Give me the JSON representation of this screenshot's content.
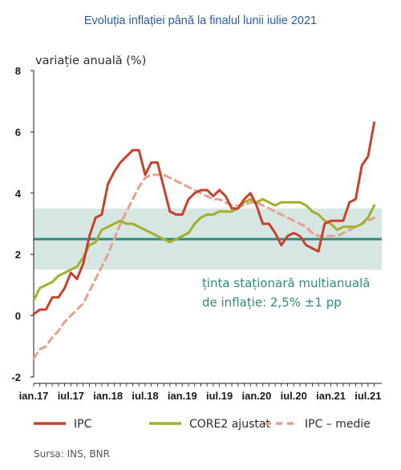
{
  "chart_data": {
    "type": "line",
    "title": "Evoluția inflației până la finalul lunii iulie 2021",
    "ylabel": "variație anuală (%)",
    "ylim": [
      -2,
      8
    ],
    "yticks": [
      -2,
      0,
      2,
      4,
      6,
      8
    ],
    "xtick_labels": [
      "ian.17",
      "iul.17",
      "ian.18",
      "iul.18",
      "ian.19",
      "iul.19",
      "ian.20",
      "iul.20",
      "ian.21",
      "iul.21"
    ],
    "target": {
      "center": 2.5,
      "lower": 1.5,
      "upper": 3.5
    },
    "annotation": [
      "ținta staționară multianuală",
      "de inflație: 2,5% ±1 pp"
    ],
    "series": [
      {
        "name": "IPC",
        "color": "#c8402e",
        "dash": "solid",
        "values": [
          0.05,
          0.2,
          0.2,
          0.6,
          0.6,
          0.9,
          1.4,
          1.2,
          1.7,
          2.6,
          3.2,
          3.3,
          4.3,
          4.7,
          5.0,
          5.2,
          5.4,
          5.4,
          4.6,
          5.0,
          5.0,
          4.2,
          3.4,
          3.3,
          3.3,
          3.8,
          4.0,
          4.1,
          4.1,
          3.9,
          4.1,
          3.9,
          3.5,
          3.5,
          3.8,
          4.0,
          3.6,
          3.0,
          3.0,
          2.7,
          2.3,
          2.6,
          2.7,
          2.6,
          2.3,
          2.2,
          2.1,
          3.0,
          3.1,
          3.1,
          3.1,
          3.7,
          3.8,
          4.9,
          5.2,
          6.3
        ]
      },
      {
        "name": "CORE2 ajustat",
        "color": "#a3b02a",
        "dash": "solid",
        "values": [
          0.5,
          0.9,
          1.0,
          1.1,
          1.3,
          1.4,
          1.5,
          1.6,
          1.9,
          2.3,
          2.4,
          2.8,
          2.9,
          3.0,
          3.1,
          3.0,
          3.0,
          2.9,
          2.8,
          2.7,
          2.6,
          2.5,
          2.4,
          2.5,
          2.6,
          2.7,
          3.0,
          3.2,
          3.3,
          3.3,
          3.4,
          3.4,
          3.4,
          3.5,
          3.7,
          3.8,
          3.7,
          3.8,
          3.7,
          3.6,
          3.7,
          3.7,
          3.7,
          3.7,
          3.6,
          3.4,
          3.3,
          3.1,
          3.0,
          2.8,
          2.9,
          2.9,
          2.9,
          3.0,
          3.2,
          3.6
        ]
      },
      {
        "name": "IPC – medie",
        "color": "#e8a08a",
        "dash": "dashed",
        "values": [
          -1.4,
          -1.1,
          -1.0,
          -0.7,
          -0.5,
          -0.2,
          0.0,
          0.2,
          0.4,
          0.8,
          1.2,
          1.6,
          2.0,
          2.5,
          3.0,
          3.4,
          3.8,
          4.2,
          4.5,
          4.6,
          4.6,
          4.6,
          4.5,
          4.4,
          4.3,
          4.2,
          4.1,
          4.0,
          3.9,
          3.8,
          3.8,
          3.7,
          3.6,
          3.6,
          3.6,
          3.7,
          3.7,
          3.6,
          3.5,
          3.4,
          3.3,
          3.2,
          3.1,
          3.0,
          2.9,
          2.7,
          2.6,
          2.6,
          2.6,
          2.6,
          2.7,
          2.8,
          2.9,
          3.0,
          3.1,
          3.2
        ]
      }
    ],
    "legend_position": "bottom"
  },
  "source": "Sursa: INS, BNR"
}
